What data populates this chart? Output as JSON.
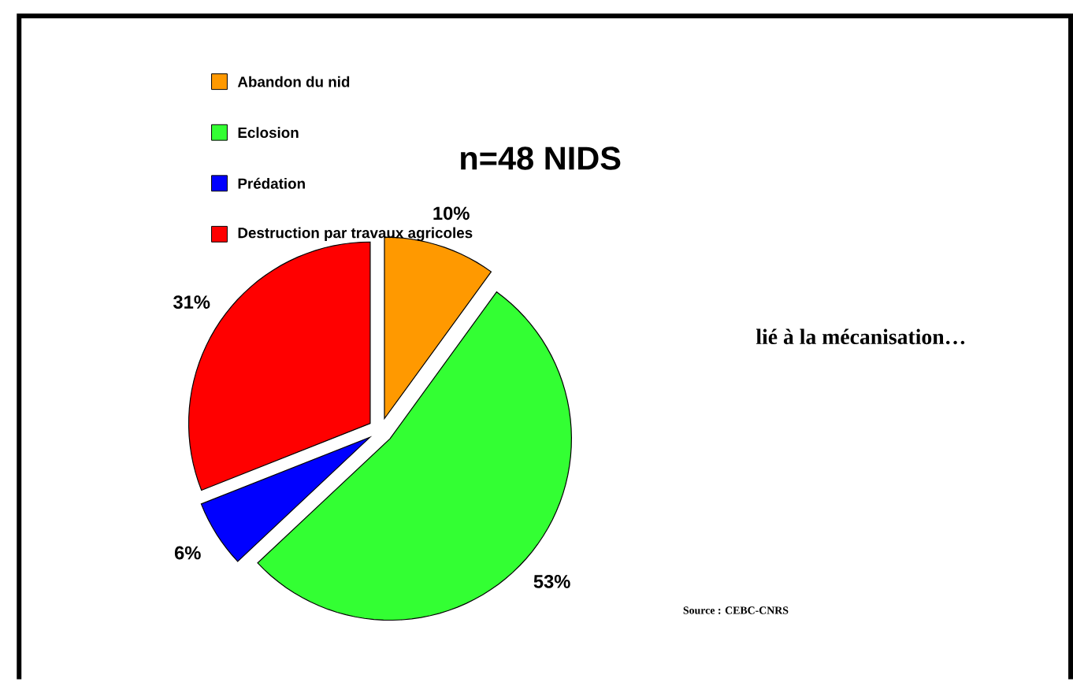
{
  "chart_data": {
    "type": "pie",
    "title": "n=48 NIDS",
    "categories": [
      "Abandon du nid",
      "Eclosion",
      "Prédation",
      "Destruction par travaux agricoles"
    ],
    "values": [
      10,
      53,
      6,
      31
    ],
    "value_labels": [
      "10%",
      "53%",
      "6%",
      "31%"
    ],
    "colors": [
      "#ff9900",
      "#33ff33",
      "#0000ff",
      "#ff0000"
    ],
    "legend": "top",
    "annotations": [
      "lié à la mécanisation…",
      "Source : CEBC-CNRS"
    ]
  }
}
